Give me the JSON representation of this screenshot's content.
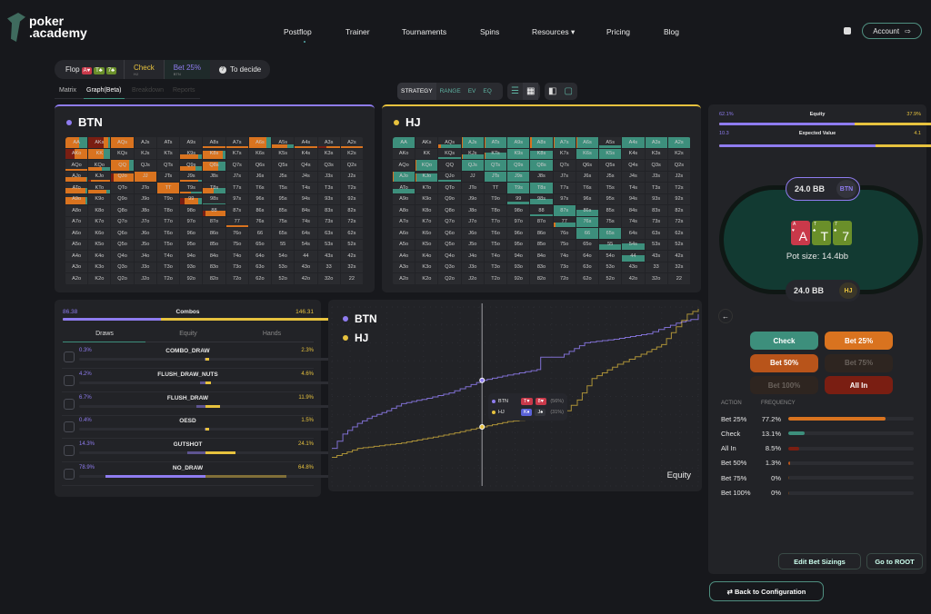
{
  "header": {
    "logo_line1": "poker",
    "logo_line2": ".academy",
    "nav": [
      "Postflop",
      "Trainer",
      "Tournaments",
      "Spins",
      "Resources ▾",
      "Pricing",
      "Blog"
    ],
    "account": "Account",
    "account_icon": "⇨"
  },
  "breadcrumb": {
    "street": "Flop",
    "board": [
      {
        "r": "A♥",
        "c": "#c9394a"
      },
      {
        "r": "T♣",
        "c": "#6a8f2a"
      },
      {
        "r": "7♣",
        "c": "#6a8f2a"
      }
    ],
    "steps": [
      {
        "label": "Check",
        "pos": "HJ",
        "color": "#e7c23e"
      },
      {
        "label": "Bet 25%",
        "pos": "BTN",
        "color": "#8f7cf0"
      }
    ],
    "next": "To decide",
    "next_icon": "?"
  },
  "view_tabs": [
    "Matrix",
    "Graph(Beta)",
    "Breakdown",
    "Reports"
  ],
  "mode_tabs": [
    "STRATEGY",
    "RANGE",
    "EV",
    "EQ"
  ],
  "players": [
    {
      "name": "BTN",
      "color": "#8f7cf0"
    },
    {
      "name": "HJ",
      "color": "#e7c23e"
    }
  ],
  "colors": {
    "bet25": "#d9731f",
    "check": "#3d8f7c",
    "allin": "#7a1e12",
    "bet50": "#b8541a",
    "btn": "#8f7cf0",
    "hj": "#e7c23e"
  },
  "ranks": [
    "A",
    "K",
    "Q",
    "J",
    "T",
    "9",
    "8",
    "7",
    "6",
    "5",
    "4",
    "3",
    "2"
  ],
  "btn_strategy": {
    "AA": [
      1,
      0.6,
      0.4,
      0
    ],
    "AKs": [
      1,
      0.2,
      0.1,
      0.7
    ],
    "AQs": [
      1,
      1,
      0,
      0
    ],
    "A8s": [
      0.15,
      1,
      0,
      0
    ],
    "A7s": [
      0.15,
      1,
      0,
      0
    ],
    "A6s": [
      1,
      0.8,
      0.2,
      0
    ],
    "A5s": [
      0.3,
      0.7,
      0.3,
      0
    ],
    "A4s": [
      0.15,
      1,
      0,
      0
    ],
    "A3s": [
      0.15,
      0.6,
      0,
      0.4
    ],
    "A2s": [
      0.15,
      1,
      0,
      0
    ],
    "AKo": [
      1,
      0.6,
      0,
      0.4
    ],
    "KK": [
      1,
      0.7,
      0.3,
      0
    ],
    "K9s": [
      0.4,
      0.8,
      0.2,
      0
    ],
    "K8s": [
      0.8,
      0.9,
      0.1,
      0
    ],
    "AQo": [
      0.15,
      1,
      0,
      0
    ],
    "KQo": [
      0.3,
      0.6,
      0.4,
      0
    ],
    "QQ": [
      1,
      0.8,
      0.2,
      0
    ],
    "Q9s": [
      0.4,
      0.7,
      0.3,
      0
    ],
    "Q8s": [
      0.8,
      0.7,
      0.3,
      0
    ],
    "AJo": [
      0.4,
      0.95,
      0.05,
      0
    ],
    "KJo": [
      0.2,
      0.9,
      0,
      0.1
    ],
    "QJo": [
      0.8,
      0.9,
      0,
      0.1
    ],
    "JJ": [
      1,
      1,
      0,
      0
    ],
    "J9s": [
      0.2,
      0.8,
      0.2,
      0
    ],
    "ATo": [
      0.5,
      0.9,
      0.1,
      0
    ],
    "KTo": [
      0.3,
      0.8,
      0.2,
      0
    ],
    "TT": [
      1,
      1,
      0,
      0
    ],
    "T9s": [
      0.1,
      0.5,
      0.5,
      0
    ],
    "T8s": [
      0.5,
      0.5,
      0.5,
      0
    ],
    "A9o": [
      0.7,
      0.9,
      0.1,
      0
    ],
    "99": [
      0.6,
      0.6,
      0.2,
      0.2
    ],
    "98s": [
      0.1,
      0,
      1,
      0
    ],
    "88": [
      0.5,
      0.9,
      0,
      0.1
    ],
    "77": [
      0.2,
      1,
      0,
      0
    ]
  },
  "hj_strategy": {
    "AA": [
      1,
      0,
      1,
      0
    ],
    "AQs": [
      0.3,
      0.1,
      0.9,
      0
    ],
    "AJs": [
      1,
      0.05,
      0.95,
      0
    ],
    "ATs": [
      1,
      0.05,
      0.95,
      0
    ],
    "A9s": [
      1,
      0,
      1,
      0
    ],
    "A8s": [
      1,
      0.05,
      0.95,
      0
    ],
    "A7s": [
      1,
      0.05,
      0.95,
      0
    ],
    "A6s": [
      1,
      0.05,
      0.95,
      0
    ],
    "A5s": [
      0.2,
      0,
      1,
      0
    ],
    "A4s": [
      1,
      0,
      1,
      0
    ],
    "A3s": [
      1,
      0,
      1,
      0
    ],
    "A2s": [
      1,
      0,
      1,
      0
    ],
    "KQs": [
      0.2,
      0,
      1,
      0
    ],
    "KJs": [
      0.4,
      0.05,
      0.95,
      0
    ],
    "KTs": [
      0.6,
      0.05,
      0.95,
      0
    ],
    "K9s": [
      1,
      0,
      1,
      0
    ],
    "K8s": [
      0.8,
      0,
      1,
      0
    ],
    "K6s": [
      1,
      0,
      1,
      0
    ],
    "K5s": [
      1,
      0,
      1,
      0
    ],
    "KQo": [
      1,
      0.05,
      0.95,
      0
    ],
    "QJs": [
      1,
      0,
      1,
      0
    ],
    "QTs": [
      1,
      0,
      1,
      0
    ],
    "Q9s": [
      1,
      0,
      1,
      0
    ],
    "Q8s": [
      1,
      0,
      1,
      0
    ],
    "AJo": [
      1,
      0.05,
      0.95,
      0
    ],
    "KJo": [
      0.8,
      0.05,
      0.95,
      0
    ],
    "QJo": [
      0.2,
      0,
      1,
      0
    ],
    "JTs": [
      1,
      0,
      1,
      0
    ],
    "J9s": [
      1,
      0,
      1,
      0
    ],
    "ATo": [
      0.4,
      0,
      1,
      0
    ],
    "T9s": [
      1,
      0,
      1,
      0
    ],
    "T8s": [
      1,
      0,
      1,
      0
    ],
    "99": [
      0.3,
      0,
      1,
      0
    ],
    "98s": [
      0.5,
      0,
      1,
      0
    ],
    "88": [
      0.1,
      0,
      1,
      0
    ],
    "87s": [
      1,
      0,
      1,
      0
    ],
    "86s": [
      0.6,
      0,
      1,
      0
    ],
    "77": [
      0.4,
      0.1,
      0.9,
      0
    ],
    "76s": [
      1,
      0,
      1,
      0
    ],
    "66": [
      1,
      0,
      1,
      0
    ],
    "65s": [
      1,
      0,
      1,
      0
    ],
    "55": [
      0.5,
      0,
      1,
      0
    ],
    "54s": [
      0.6,
      0,
      1,
      0
    ],
    "44": [
      0.6,
      0,
      1,
      0
    ]
  },
  "draws": {
    "combos_label": "Combos",
    "combos_btn": "86.38",
    "combos_hj": "146.31",
    "combos_frac": 0.37,
    "tabs": [
      "Draws",
      "Equity",
      "Hands"
    ],
    "rows": [
      {
        "name": "COMBO_DRAW",
        "btn": "0.3%",
        "hj": "2.3%",
        "b": 0.3,
        "h": 2.3
      },
      {
        "name": "FLUSH_DRAW_NUTS",
        "btn": "4.2%",
        "hj": "4.6%",
        "b": 4.2,
        "h": 4.6
      },
      {
        "name": "FLUSH_DRAW",
        "btn": "6.7%",
        "hj": "11.9%",
        "b": 6.7,
        "h": 11.9
      },
      {
        "name": "OESD",
        "btn": "0.4%",
        "hj": "1.5%",
        "b": 0.4,
        "h": 1.5
      },
      {
        "name": "GUTSHOT",
        "btn": "14.3%",
        "hj": "24.1%",
        "b": 14.3,
        "h": 24.1
      },
      {
        "name": "NO_DRAW",
        "btn": "78.9%",
        "hj": "64.8%",
        "b": 78.9,
        "h": 64.8
      }
    ]
  },
  "chart_data": {
    "type": "line",
    "xlabel": "",
    "ylabel": "",
    "caption": "Equity",
    "xlim": [
      0,
      100
    ],
    "ylim": [
      0,
      100
    ],
    "grid": true,
    "legend": "top-left",
    "series": [
      {
        "name": "BTN",
        "x": [
          0,
          3,
          7,
          11,
          15,
          19,
          26,
          32,
          41,
          48,
          56,
          57,
          62,
          69,
          77,
          86,
          94,
          98,
          100
        ],
        "y": [
          21,
          29,
          35,
          39,
          42,
          46,
          49,
          52,
          59,
          62,
          65,
          72,
          72,
          80,
          82,
          85,
          91,
          93,
          96
        ]
      },
      {
        "name": "HJ",
        "x": [
          0,
          7,
          19,
          32,
          41,
          48,
          62,
          67,
          71,
          78,
          86,
          90,
          94,
          97,
          100
        ],
        "y": [
          16,
          21,
          24,
          29,
          33,
          36,
          39,
          48,
          60,
          68,
          75,
          79,
          89,
          96,
          99
        ]
      }
    ],
    "cursor_x": 41,
    "tooltip": [
      {
        "name": "BTN",
        "cards": [
          {
            "r": "T♥",
            "c": "#c9394a"
          },
          {
            "r": "8♥",
            "c": "#c9394a"
          }
        ],
        "value": "(56%)"
      },
      {
        "name": "HJ",
        "cards": [
          {
            "r": "K♦",
            "c": "#5a62d8"
          },
          {
            "r": "J♠",
            "c": "#33353c"
          }
        ],
        "value": "(31%)"
      }
    ]
  },
  "right": {
    "equity_label": "Equity",
    "equity_btn": "62.1%",
    "equity_hj": "37.9%",
    "equity_frac": 0.621,
    "ev_label": "Expected Value",
    "ev_btn": "10.3",
    "ev_hj": "4.1",
    "ev_frac": 0.715,
    "top_stack": "24.0 BB",
    "top_pos": "BTN",
    "bottom_stack": "24.0 BB",
    "bottom_pos": "HJ",
    "board": [
      {
        "r": "A",
        "s": "♥",
        "c": "#c9394a"
      },
      {
        "r": "T",
        "s": "♣",
        "c": "#6a8f2a"
      },
      {
        "r": "7",
        "s": "♣",
        "c": "#6a8f2a"
      }
    ],
    "pot": "Pot size: 14.4bb",
    "actions": [
      {
        "label": "Check",
        "bg": "#3d8f7c",
        "fg": "#fff"
      },
      {
        "label": "Bet 25%",
        "bg": "#d9731f",
        "fg": "#fff"
      },
      {
        "label": "Bet 50%",
        "bg": "#b8541a",
        "fg": "#fff"
      },
      {
        "label": "Bet 75%",
        "bg": "#2e2520",
        "fg": "#6a625c"
      },
      {
        "label": "Bet 100%",
        "bg": "#2e2520",
        "fg": "#6a625c"
      },
      {
        "label": "All In",
        "bg": "#7a1e12",
        "fg": "#fff"
      }
    ],
    "freq_head": [
      "ACTION",
      "FREQUENCY"
    ],
    "freqs": [
      {
        "name": "Bet 25%",
        "val": "77.2%",
        "f": 77.2,
        "c": "#d9731f"
      },
      {
        "name": "Check",
        "val": "13.1%",
        "f": 13.1,
        "c": "#3d8f7c"
      },
      {
        "name": "All In",
        "val": "8.5%",
        "f": 8.5,
        "c": "#7a1e12"
      },
      {
        "name": "Bet 50%",
        "val": "1.3%",
        "f": 1.3,
        "c": "#b8541a"
      },
      {
        "name": "Bet 75%",
        "val": "0%",
        "f": 0,
        "c": "#5a3a20"
      },
      {
        "name": "Bet 100%",
        "val": "0%",
        "f": 0,
        "c": "#5a3a20"
      }
    ],
    "edit_sizings": "Edit Bet Sizings",
    "go_root": "Go to ROOT"
  },
  "back_config": "⇄ Back to Configuration"
}
